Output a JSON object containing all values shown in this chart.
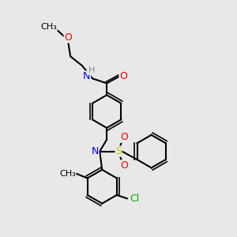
{
  "background_color": "#e8e8e8",
  "bond_color": "#000000",
  "atom_colors": {
    "N": "#0000ff",
    "O": "#ff0000",
    "S": "#cccc00",
    "Cl": "#00aa00",
    "H": "#888888",
    "C": "#000000"
  },
  "font_size": 9,
  "figsize": [
    3.0,
    3.0
  ],
  "dpi": 100
}
